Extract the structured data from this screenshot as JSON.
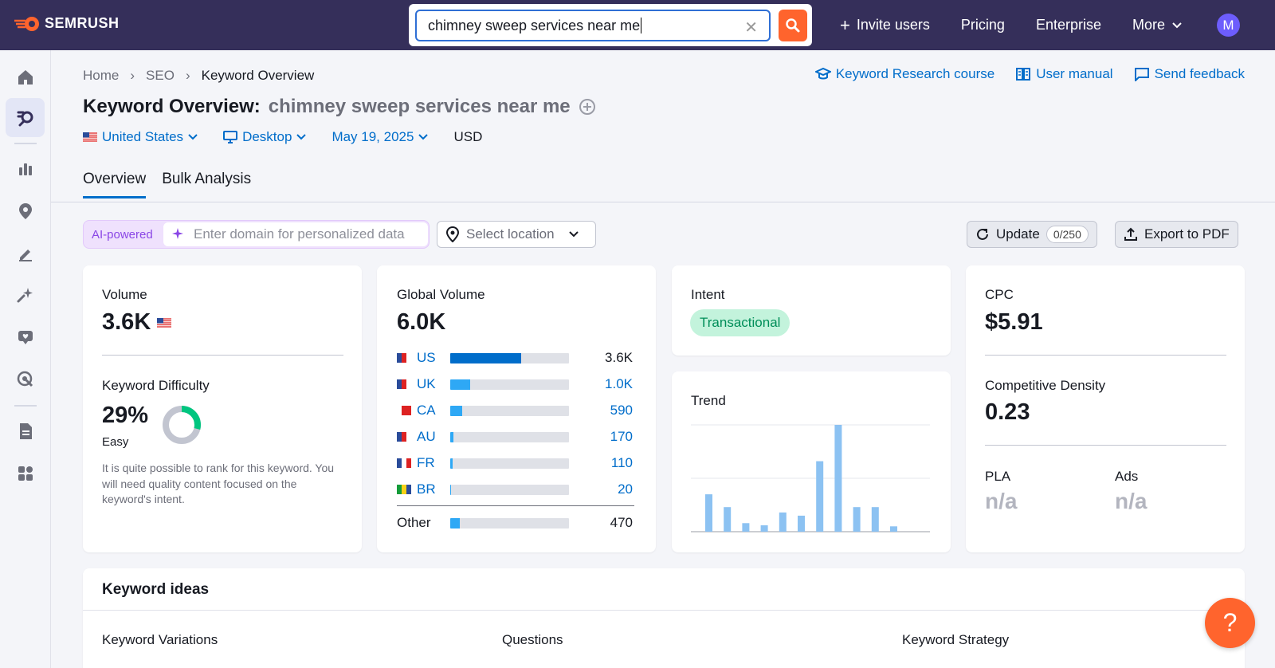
{
  "brand": {
    "name": "SEMRUSH",
    "accent": "#ff642d",
    "nav_bg": "#352f5a"
  },
  "search": {
    "value": "chimney sweep services near me"
  },
  "nav": {
    "invite": "Invite users",
    "pricing": "Pricing",
    "enterprise": "Enterprise",
    "more": "More",
    "avatar": "M"
  },
  "sidebar": {
    "icons": [
      "home-icon",
      "keyword-research-icon",
      "chart-icon",
      "location-pin-icon",
      "edit-icon",
      "sparkles-icon",
      "heart-chat-icon",
      "target-cursor-icon",
      "document-icon",
      "apps-icon"
    ]
  },
  "breadcrumb": {
    "home": "Home",
    "seo": "SEO",
    "current": "Keyword Overview"
  },
  "top_links": {
    "course": "Keyword Research course",
    "manual": "User manual",
    "feedback": "Send feedback"
  },
  "title": {
    "prefix": "Keyword Overview:",
    "keyword": "chimney sweep services near me"
  },
  "filters": {
    "country": "United States",
    "device": "Desktop",
    "date": "May 19, 2025",
    "currency": "USD"
  },
  "tabs": [
    "Overview",
    "Bulk Analysis"
  ],
  "toolbar": {
    "ai_label": "AI-powered",
    "domain_placeholder": "Enter domain for personalized data",
    "location_placeholder": "Select location",
    "update": "Update",
    "update_count": "0/250",
    "export": "Export to PDF"
  },
  "volume": {
    "label": "Volume",
    "value": "3.6K"
  },
  "difficulty": {
    "label": "Keyword Difficulty",
    "value": "29%",
    "level": "Easy",
    "percent": 29,
    "description": "It is quite possible to rank for this keyword. You will need quality content focused on the keyword's intent."
  },
  "global_volume": {
    "label": "Global Volume",
    "value": "6.0K",
    "rows": [
      {
        "code": "US",
        "value": "3.6K",
        "fraction": 0.6,
        "color": "#006dca"
      },
      {
        "code": "UK",
        "value": "1.0K",
        "fraction": 0.167,
        "color": "#2ea8f5"
      },
      {
        "code": "CA",
        "value": "590",
        "fraction": 0.098,
        "color": "#2ea8f5"
      },
      {
        "code": "AU",
        "value": "170",
        "fraction": 0.03,
        "color": "#2ea8f5"
      },
      {
        "code": "FR",
        "value": "110",
        "fraction": 0.02,
        "color": "#2ea8f5"
      },
      {
        "code": "BR",
        "value": "20",
        "fraction": 0.01,
        "color": "#2ea8f5"
      }
    ],
    "other": {
      "label": "Other",
      "value": "470",
      "fraction": 0.08,
      "color": "#2ea8f5"
    }
  },
  "intent": {
    "label": "Intent",
    "value": "Transactional"
  },
  "trend": {
    "label": "Trend",
    "values": [
      0.35,
      0.23,
      0.08,
      0.06,
      0.18,
      0.15,
      0.66,
      1.0,
      0.23,
      0.23,
      0.05
    ]
  },
  "cpc": {
    "label": "CPC",
    "value": "$5.91"
  },
  "competitive_density": {
    "label": "Competitive Density",
    "value": "0.23"
  },
  "pla": {
    "label": "PLA",
    "value": "n/a"
  },
  "ads": {
    "label": "Ads",
    "value": "n/a"
  },
  "keyword_ideas": {
    "title": "Keyword ideas",
    "variations": "Keyword Variations",
    "questions": "Questions",
    "strategy": "Keyword Strategy"
  },
  "help": "?"
}
